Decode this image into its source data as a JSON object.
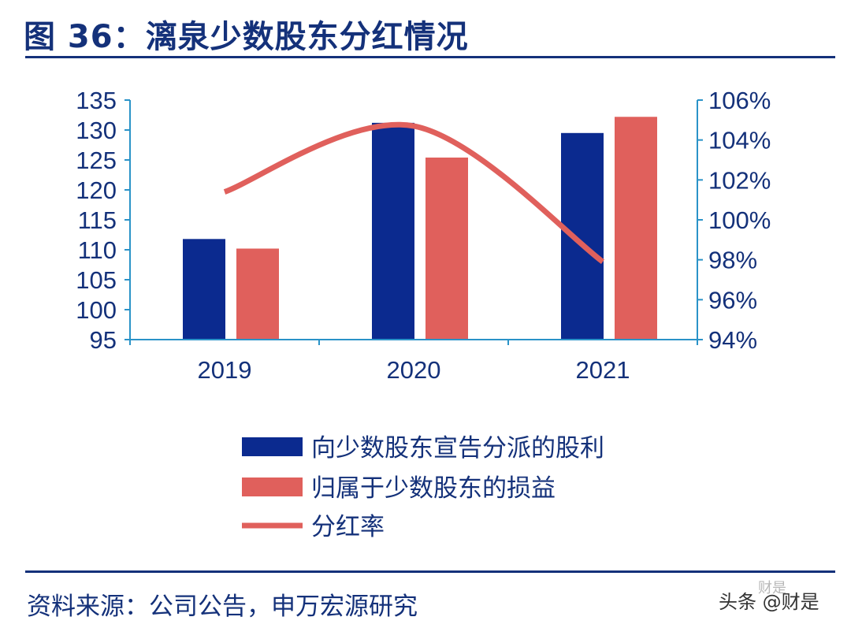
{
  "title": "图 36：漓泉少数股东分红情况",
  "source": "资料来源：公司公告，申万宏源研究",
  "watermark": {
    "text": "头条 @财是",
    "faint_text": "财是"
  },
  "colors": {
    "navy": "#0b2a8f",
    "red": "#e0605c",
    "axis": "#2a93c8",
    "text": "#14317a"
  },
  "chart_data": {
    "type": "bar",
    "title": "漓泉少数股东分红情况",
    "categories": [
      "2019",
      "2020",
      "2021"
    ],
    "left_axis": {
      "range": [
        95,
        135
      ],
      "ticks": [
        "135",
        "130",
        "125",
        "120",
        "115",
        "110",
        "105",
        "100",
        "95"
      ],
      "tick_values": [
        135,
        130,
        125,
        120,
        115,
        110,
        105,
        100,
        95
      ]
    },
    "right_axis": {
      "range": [
        94,
        106
      ],
      "ticks": [
        "106%",
        "104%",
        "102%",
        "100%",
        "98%",
        "96%",
        "94%"
      ],
      "tick_values": [
        106,
        104,
        102,
        100,
        98,
        96,
        94
      ]
    },
    "series": [
      {
        "name": "向少数股东宣告分派的股利",
        "type": "bar",
        "axis": "left",
        "color": "#0b2a8f",
        "values": [
          111.8,
          131.2,
          129.5
        ]
      },
      {
        "name": "归属于少数股东的损益",
        "type": "bar",
        "axis": "left",
        "color": "#e0605c",
        "values": [
          110.2,
          125.4,
          132.2
        ]
      },
      {
        "name": "分红率",
        "type": "line",
        "axis": "right",
        "color": "#e0605c",
        "values": [
          101.4,
          104.7,
          97.9
        ]
      }
    ],
    "legend_position": "bottom",
    "grid": false
  }
}
